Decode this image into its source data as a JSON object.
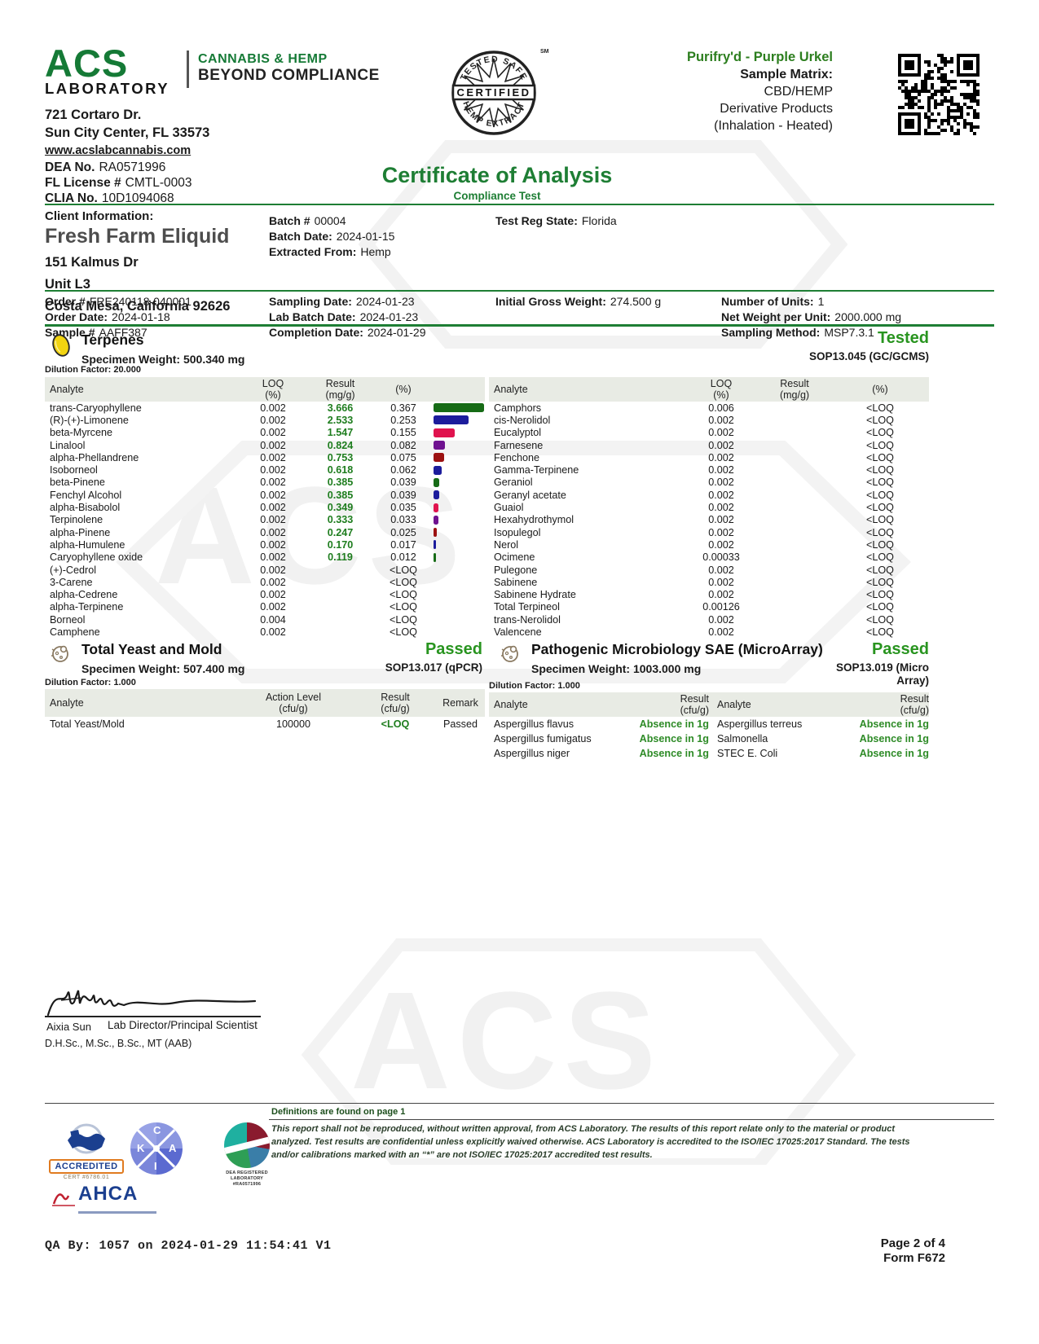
{
  "lab": {
    "logo_acs": "ACS",
    "logo_laboratory": "LABORATORY",
    "tagline1": "CANNABIS & HEMP",
    "tagline2": "BEYOND COMPLIANCE",
    "address_line1": "721 Cortaro Dr.",
    "address_line2": "Sun City Center, FL 33573",
    "website": "www.acslabcannabis.com",
    "dea_label": "DEA No.",
    "dea_value": "RA0571996",
    "license_label": "FL License #",
    "license_value": "CMTL-0003",
    "clia_label": "CLIA No.",
    "clia_value": "10D1094068"
  },
  "seal": {
    "arc_top": "TESTED SAFE",
    "band": "CERTIFIED",
    "arc_bottom": "HEMP EXTRACT",
    "sm": "SM"
  },
  "title": {
    "main": "Certificate of Analysis",
    "sub": "Compliance Test"
  },
  "sample": {
    "product_name": "Purifry'd - Purple Urkel",
    "matrix_label": "Sample Matrix:",
    "matrix_line1": "CBD/HEMP",
    "matrix_line2": "Derivative Products",
    "matrix_line3": "(Inhalation - Heated)"
  },
  "client": {
    "section_label": "Client Information:",
    "name": "Fresh Farm Eliquid",
    "address1": "151 Kalmus Dr",
    "address2": "Unit L3",
    "address3": "Costa Mesa, California 92626",
    "batch_label": "Batch #",
    "batch_value": "00004",
    "batch_date_label": "Batch Date:",
    "batch_date_value": "2024-01-15",
    "extracted_label": "Extracted From:",
    "extracted_value": "Hemp",
    "state_label": "Test Reg State:",
    "state_value": "Florida"
  },
  "order": {
    "order_label": "Order #",
    "order_value": "FRE240118-040001",
    "order_date_label": "Order Date:",
    "order_date_value": "2024-01-18",
    "sample_label": "Sample #",
    "sample_value": "AAFF387",
    "sampling_date_label": "Sampling Date:",
    "sampling_date_value": "2024-01-23",
    "lab_batch_label": "Lab Batch Date:",
    "lab_batch_value": "2024-01-23",
    "completion_label": "Completion Date:",
    "completion_value": "2024-01-29",
    "gross_weight_label": "Initial Gross Weight:",
    "gross_weight_value": "274.500 g",
    "units_label": "Number of Units:",
    "units_value": "1",
    "net_weight_label": "Net Weight per Unit:",
    "net_weight_value": "2000.000 mg",
    "sampling_method_label": "Sampling Method:",
    "sampling_method_value": "MSP7.3.1"
  },
  "terpenes": {
    "title": "Terpenes",
    "specimen_weight": "Specimen Weight: 500.340 mg",
    "status": "Tested",
    "method": "SOP13.045 (GC/GCMS)",
    "dilution": "Dilution Factor: 20.000",
    "headers": {
      "analyte": "Analyte",
      "loq": "LOQ\n(%)",
      "result": "Result\n(mg/g)",
      "pct": "(%)"
    },
    "max_pct": 0.367,
    "left_rows": [
      {
        "analyte": "trans-Caryophyllene",
        "loq": "0.002",
        "result": "3.666",
        "pct": "0.367",
        "bar": "#166b16"
      },
      {
        "analyte": "(R)-(+)-Limonene",
        "loq": "0.002",
        "result": "2.533",
        "pct": "0.253",
        "bar": "#1c1c9c"
      },
      {
        "analyte": "beta-Myrcene",
        "loq": "0.002",
        "result": "1.547",
        "pct": "0.155",
        "bar": "#e0134e"
      },
      {
        "analyte": "Linalool",
        "loq": "0.002",
        "result": "0.824",
        "pct": "0.082",
        "bar": "#6f1290"
      },
      {
        "analyte": "alpha-Phellandrene",
        "loq": "0.002",
        "result": "0.753",
        "pct": "0.075",
        "bar": "#9c1111"
      },
      {
        "analyte": "Isoborneol",
        "loq": "0.002",
        "result": "0.618",
        "pct": "0.062",
        "bar": "#1c1c9c"
      },
      {
        "analyte": "beta-Pinene",
        "loq": "0.002",
        "result": "0.385",
        "pct": "0.039",
        "bar": "#166b16"
      },
      {
        "analyte": "Fenchyl Alcohol",
        "loq": "0.002",
        "result": "0.385",
        "pct": "0.039",
        "bar": "#1c1c9c"
      },
      {
        "analyte": "alpha-Bisabolol",
        "loq": "0.002",
        "result": "0.349",
        "pct": "0.035",
        "bar": "#e0134e"
      },
      {
        "analyte": "Terpinolene",
        "loq": "0.002",
        "result": "0.333",
        "pct": "0.033",
        "bar": "#6f1290"
      },
      {
        "analyte": "alpha-Pinene",
        "loq": "0.002",
        "result": "0.247",
        "pct": "0.025",
        "bar": "#9c1111"
      },
      {
        "analyte": "alpha-Humulene",
        "loq": "0.002",
        "result": "0.170",
        "pct": "0.017",
        "bar": "#1c1c9c"
      },
      {
        "analyte": "Caryophyllene oxide",
        "loq": "0.002",
        "result": "0.119",
        "pct": "0.012",
        "bar": "#166b16"
      },
      {
        "analyte": "(+)-Cedrol",
        "loq": "0.002",
        "result": "",
        "pct": "<LOQ"
      },
      {
        "analyte": "3-Carene",
        "loq": "0.002",
        "result": "",
        "pct": "<LOQ"
      },
      {
        "analyte": "alpha-Cedrene",
        "loq": "0.002",
        "result": "",
        "pct": "<LOQ"
      },
      {
        "analyte": "alpha-Terpinene",
        "loq": "0.002",
        "result": "",
        "pct": "<LOQ"
      },
      {
        "analyte": "Borneol",
        "loq": "0.004",
        "result": "",
        "pct": "<LOQ"
      },
      {
        "analyte": "Camphene",
        "loq": "0.002",
        "result": "",
        "pct": "<LOQ"
      }
    ],
    "right_rows": [
      {
        "analyte": "Camphors",
        "loq": "0.006",
        "result": "",
        "pct": "<LOQ"
      },
      {
        "analyte": "cis-Nerolidol",
        "loq": "0.002",
        "result": "",
        "pct": "<LOQ"
      },
      {
        "analyte": "Eucalyptol",
        "loq": "0.002",
        "result": "",
        "pct": "<LOQ"
      },
      {
        "analyte": "Farnesene",
        "loq": "0.002",
        "result": "",
        "pct": "<LOQ"
      },
      {
        "analyte": "Fenchone",
        "loq": "0.002",
        "result": "",
        "pct": "<LOQ"
      },
      {
        "analyte": "Gamma-Terpinene",
        "loq": "0.002",
        "result": "",
        "pct": "<LOQ"
      },
      {
        "analyte": "Geraniol",
        "loq": "0.002",
        "result": "",
        "pct": "<LOQ"
      },
      {
        "analyte": "Geranyl acetate",
        "loq": "0.002",
        "result": "",
        "pct": "<LOQ"
      },
      {
        "analyte": "Guaiol",
        "loq": "0.002",
        "result": "",
        "pct": "<LOQ"
      },
      {
        "analyte": "Hexahydrothymol",
        "loq": "0.002",
        "result": "",
        "pct": "<LOQ"
      },
      {
        "analyte": "Isopulegol",
        "loq": "0.002",
        "result": "",
        "pct": "<LOQ"
      },
      {
        "analyte": "Nerol",
        "loq": "0.002",
        "result": "",
        "pct": "<LOQ"
      },
      {
        "analyte": "Ocimene",
        "loq": "0.00033",
        "result": "",
        "pct": "<LOQ"
      },
      {
        "analyte": "Pulegone",
        "loq": "0.002",
        "result": "",
        "pct": "<LOQ"
      },
      {
        "analyte": "Sabinene",
        "loq": "0.002",
        "result": "",
        "pct": "<LOQ"
      },
      {
        "analyte": "Sabinene Hydrate",
        "loq": "0.002",
        "result": "",
        "pct": "<LOQ"
      },
      {
        "analyte": "Total Terpineol",
        "loq": "0.00126",
        "result": "",
        "pct": "<LOQ"
      },
      {
        "analyte": "trans-Nerolidol",
        "loq": "0.002",
        "result": "",
        "pct": "<LOQ"
      },
      {
        "analyte": "Valencene",
        "loq": "0.002",
        "result": "",
        "pct": "<LOQ"
      }
    ]
  },
  "yeast_mold": {
    "title": "Total Yeast and Mold",
    "specimen_weight": "Specimen Weight: 507.400 mg",
    "status": "Passed",
    "method": "SOP13.017 (qPCR)",
    "dilution": "Dilution Factor: 1.000",
    "headers": {
      "analyte": "Analyte",
      "action": "Action Level\n(cfu/g)",
      "result": "Result\n(cfu/g)",
      "remark": "Remark"
    },
    "rows": [
      {
        "analyte": "Total Yeast/Mold",
        "action": "100000",
        "result": "<LOQ",
        "remark": "Passed"
      }
    ]
  },
  "micro": {
    "title": "Pathogenic Microbiology SAE (MicroArray)",
    "specimen_weight": "Specimen Weight: 1003.000 mg",
    "status": "Passed",
    "method": "SOP13.019 (Micro Array)",
    "dilution": "Dilution Factor: 1.000",
    "headers": {
      "analyte": "Analyte",
      "result": "Result\n(cfu/g)"
    },
    "rows": [
      {
        "analyte1": "Aspergillus flavus",
        "result1": "Absence in 1g",
        "analyte2": "Aspergillus terreus",
        "result2": "Absence in 1g"
      },
      {
        "analyte1": "Aspergillus fumigatus",
        "result1": "Absence in 1g",
        "analyte2": "Salmonella",
        "result2": "Absence in 1g"
      },
      {
        "analyte1": "Aspergillus niger",
        "result1": "Absence in 1g",
        "analyte2": "STEC E. Coli",
        "result2": "Absence in 1g"
      }
    ]
  },
  "signature": {
    "name": "Aixia Sun",
    "role": "Lab Director/Principal Scientist",
    "credentials": "D.H.Sc., M.Sc., B.Sc., MT (AAB)"
  },
  "footer": {
    "definitions": "Definitions are found on page 1",
    "disclaimer": "This report shall not be reproduced, without written approval, from ACS Laboratory. The results of this report relate only to the material or product analyzed. Test results are confidential unless explicitly waived otherwise. ACS Laboratory is accredited to the ISO/IEC 17025:2017 Standard. The tests and/or calibrations marked with an “*” are not ISO/IEC 17025:2017 accredited test results.",
    "qa_line": "QA By: 1057 on 2024-01-29 11:54:41 V1",
    "page": "Page 2 of 4",
    "form": "Form F672",
    "a2la_text": "ACCREDITED",
    "a2la_cert": "CERT #6786.01",
    "dea_reg_line1": "DEA REGISTERED LABORATORY",
    "dea_reg_line2": "#RA0571996",
    "ahca": "AHCA"
  },
  "colors": {
    "brand_green": "#1e7e34",
    "status_green": "#28941f",
    "result_green": "#1e7d1e"
  }
}
